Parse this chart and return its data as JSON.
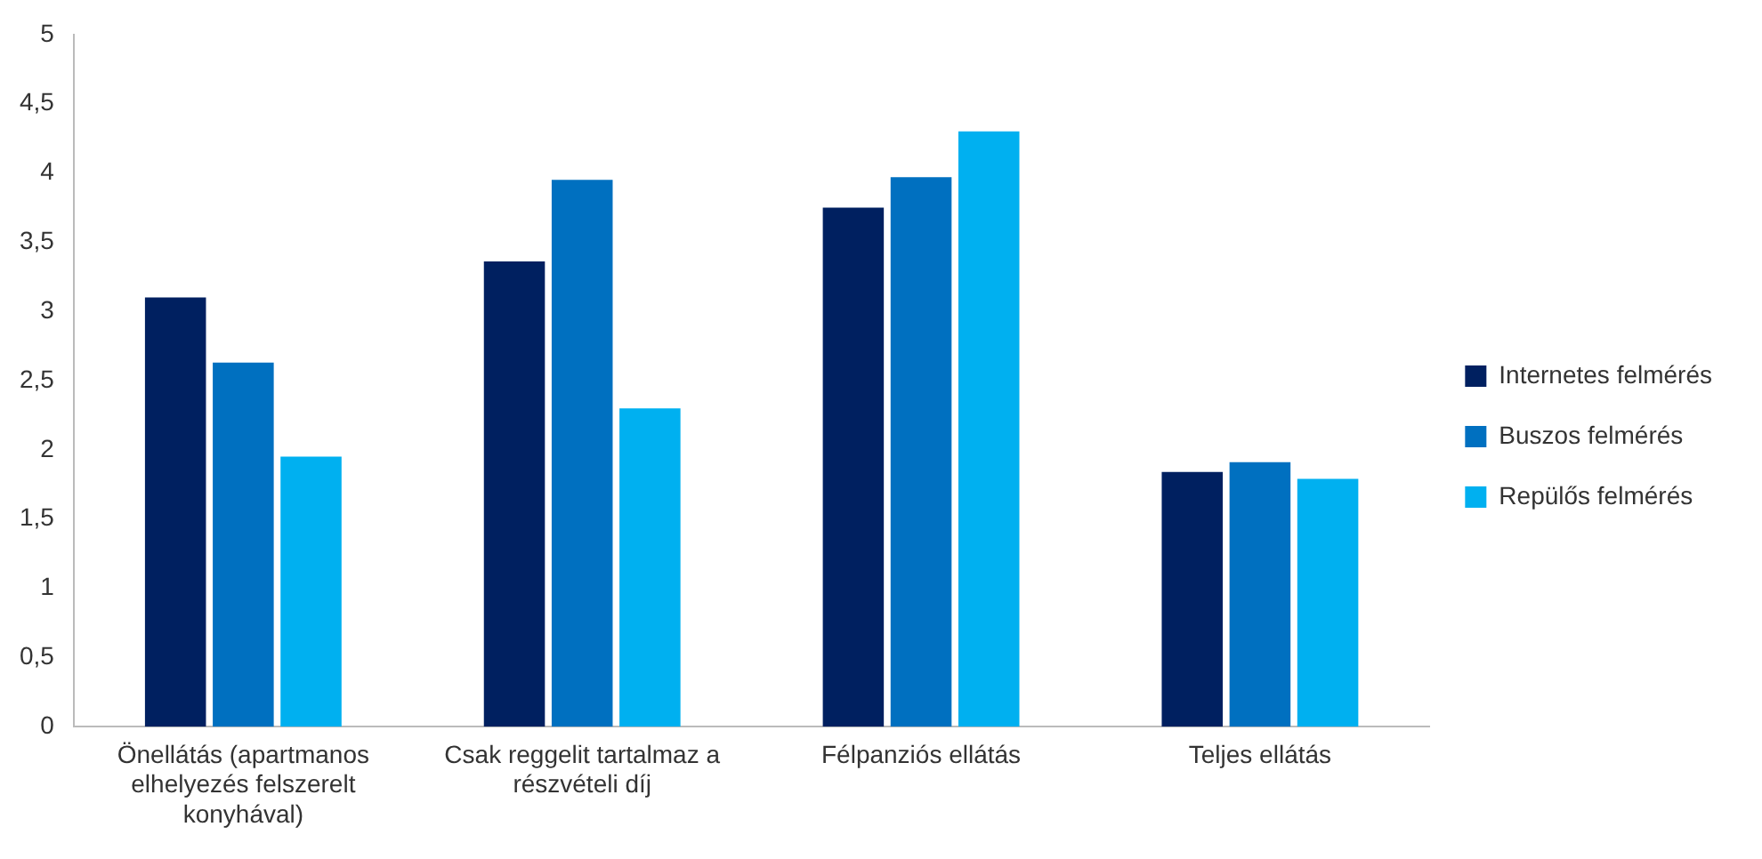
{
  "chart_data": {
    "type": "bar",
    "categories": [
      "Önellátás (apartmanos elhelyezés felszerelt konyhával)",
      "Csak reggelit tartalmaz a részvételi díj",
      "Félpanziós ellátás",
      "Teljes ellátás"
    ],
    "series": [
      {
        "name": "Internetes felmérés",
        "color": "#002060",
        "values": [
          3.1,
          3.36,
          3.75,
          1.84
        ]
      },
      {
        "name": "Buszos felmérés",
        "color": "#0070c0",
        "values": [
          2.63,
          3.95,
          3.97,
          1.91
        ]
      },
      {
        "name": "Repülős felmérés",
        "color": "#00b0f0",
        "values": [
          1.95,
          2.3,
          4.3,
          1.79
        ]
      }
    ],
    "ylim": [
      0,
      5
    ],
    "yticks": [
      0,
      {
        "value": 0.5,
        "label": "0,5"
      },
      1,
      {
        "value": 1.5,
        "label": "1,5"
      },
      2,
      {
        "value": 2.5,
        "label": "2,5"
      },
      3,
      {
        "value": 3.5,
        "label": "3,5"
      },
      4,
      {
        "value": 4.5,
        "label": "4,5"
      },
      5
    ],
    "grid": false,
    "legend": "right"
  }
}
